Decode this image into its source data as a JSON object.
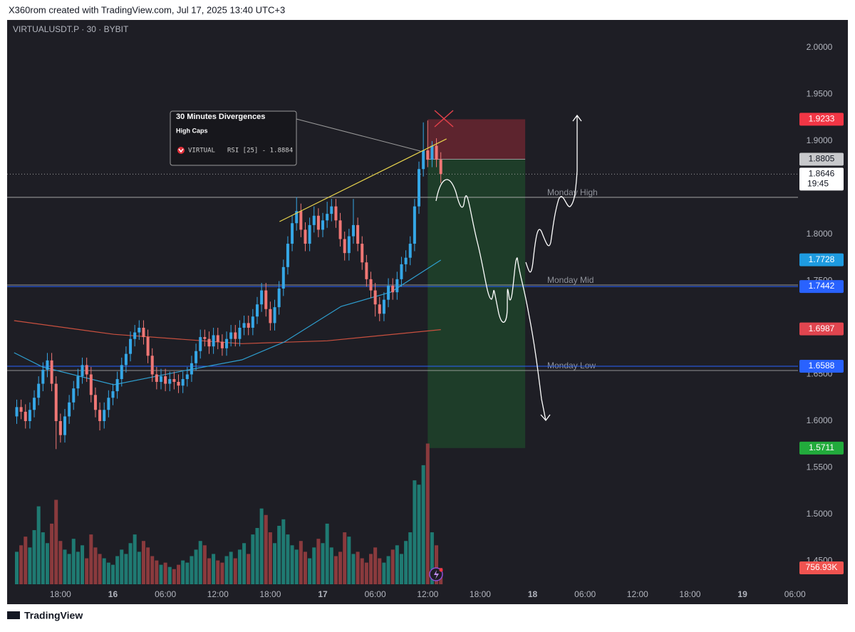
{
  "header": {
    "text": "X360rom created with TradingView.com, Jul 17, 2025 13:40 UTC+3"
  },
  "footer": {
    "brand": "TradingView"
  },
  "chart_data": {
    "type": "candlestick",
    "title": "VIRTUALUSDT.P · 30 · BYBIT",
    "up_color": "#35a7e6",
    "down_color": "#f07775",
    "volume_up_color": "#1f7a72",
    "volume_down_color": "#8a3a3d",
    "open": [
      1.605,
      1.615,
      1.61,
      1.6,
      1.612,
      1.625,
      1.64,
      1.655,
      1.665,
      1.64,
      1.6,
      1.585,
      1.605,
      1.62,
      1.635,
      1.648,
      1.66,
      1.65,
      1.628,
      1.612,
      1.6,
      1.612,
      1.625,
      1.632,
      1.645,
      1.66,
      1.672,
      1.688,
      1.695,
      1.7,
      1.69,
      1.67,
      1.65,
      1.642,
      1.648,
      1.64,
      1.645,
      1.642,
      1.638,
      1.645,
      1.65,
      1.662,
      1.675,
      1.69,
      1.688,
      1.68,
      1.692,
      1.685,
      1.678,
      1.688,
      1.695,
      1.688,
      1.7,
      1.705,
      1.7,
      1.712,
      1.725,
      1.74,
      1.72,
      1.705,
      1.722,
      1.742,
      1.765,
      1.79,
      1.812,
      1.825,
      1.805,
      1.79,
      1.81,
      1.82,
      1.805,
      1.815,
      1.822,
      1.83,
      1.815,
      1.795,
      1.78,
      1.798,
      1.81,
      1.79,
      1.77,
      1.752,
      1.74,
      1.725,
      1.715,
      1.73,
      1.745,
      1.738,
      1.752,
      1.768,
      1.775,
      1.79,
      1.83,
      1.87,
      1.89,
      1.88,
      1.895,
      1.88
    ],
    "high": [
      1.623,
      1.623,
      1.618,
      1.62,
      1.633,
      1.648,
      1.663,
      1.673,
      1.673,
      1.648,
      1.608,
      1.613,
      1.628,
      1.643,
      1.656,
      1.668,
      1.668,
      1.658,
      1.636,
      1.62,
      1.62,
      1.633,
      1.64,
      1.653,
      1.668,
      1.68,
      1.696,
      1.703,
      1.708,
      1.708,
      1.698,
      1.678,
      1.658,
      1.656,
      1.656,
      1.653,
      1.653,
      1.65,
      1.653,
      1.658,
      1.67,
      1.683,
      1.698,
      1.698,
      1.696,
      1.7,
      1.7,
      1.693,
      1.696,
      1.703,
      1.703,
      1.708,
      1.713,
      1.713,
      1.72,
      1.733,
      1.748,
      1.748,
      1.728,
      1.73,
      1.75,
      1.773,
      1.798,
      1.82,
      1.84,
      1.833,
      1.813,
      1.818,
      1.83,
      1.828,
      1.823,
      1.835,
      1.838,
      1.838,
      1.823,
      1.803,
      1.806,
      1.838,
      1.818,
      1.798,
      1.778,
      1.76,
      1.748,
      1.733,
      1.738,
      1.753,
      1.753,
      1.76,
      1.776,
      1.783,
      1.798,
      1.838,
      1.878,
      1.92,
      1.922,
      1.9,
      1.903,
      1.888
    ],
    "low": [
      1.597,
      1.602,
      1.592,
      1.592,
      1.604,
      1.617,
      1.632,
      1.647,
      1.632,
      1.57,
      1.577,
      1.577,
      1.597,
      1.612,
      1.627,
      1.64,
      1.642,
      1.62,
      1.604,
      1.59,
      1.592,
      1.604,
      1.617,
      1.624,
      1.637,
      1.652,
      1.664,
      1.68,
      1.687,
      1.682,
      1.662,
      1.642,
      1.634,
      1.634,
      1.632,
      1.632,
      1.634,
      1.63,
      1.63,
      1.637,
      1.642,
      1.654,
      1.667,
      1.68,
      1.672,
      1.672,
      1.677,
      1.67,
      1.67,
      1.68,
      1.68,
      1.68,
      1.692,
      1.692,
      1.692,
      1.704,
      1.717,
      1.712,
      1.697,
      1.697,
      1.714,
      1.734,
      1.757,
      1.782,
      1.804,
      1.797,
      1.782,
      1.782,
      1.802,
      1.797,
      1.797,
      1.807,
      1.814,
      1.807,
      1.787,
      1.772,
      1.772,
      1.79,
      1.782,
      1.762,
      1.744,
      1.732,
      1.712,
      1.707,
      1.707,
      1.722,
      1.73,
      1.73,
      1.744,
      1.76,
      1.767,
      1.782,
      1.822,
      1.862,
      1.872,
      1.872,
      1.872,
      1.855
    ],
    "close": [
      1.615,
      1.61,
      1.6,
      1.612,
      1.625,
      1.64,
      1.655,
      1.665,
      1.64,
      1.6,
      1.585,
      1.605,
      1.62,
      1.635,
      1.648,
      1.66,
      1.65,
      1.628,
      1.612,
      1.6,
      1.612,
      1.625,
      1.632,
      1.645,
      1.66,
      1.672,
      1.688,
      1.695,
      1.7,
      1.69,
      1.67,
      1.65,
      1.642,
      1.648,
      1.64,
      1.645,
      1.642,
      1.638,
      1.645,
      1.65,
      1.662,
      1.675,
      1.69,
      1.688,
      1.68,
      1.692,
      1.685,
      1.678,
      1.688,
      1.695,
      1.688,
      1.7,
      1.705,
      1.7,
      1.712,
      1.725,
      1.74,
      1.72,
      1.705,
      1.722,
      1.742,
      1.765,
      1.79,
      1.812,
      1.825,
      1.805,
      1.79,
      1.81,
      1.82,
      1.805,
      1.815,
      1.822,
      1.83,
      1.815,
      1.795,
      1.78,
      1.798,
      1.81,
      1.79,
      1.77,
      1.752,
      1.74,
      1.725,
      1.715,
      1.73,
      1.745,
      1.738,
      1.752,
      1.768,
      1.775,
      1.79,
      1.83,
      1.87,
      1.89,
      1.88,
      1.895,
      1.88,
      1.8646
    ],
    "volume": [
      1500,
      1800,
      2200,
      1700,
      2500,
      3600,
      2400,
      1900,
      2800,
      3900,
      2000,
      1600,
      1400,
      2100,
      1500,
      1800,
      1200,
      2300,
      1700,
      1400,
      1200,
      1000,
      900,
      1300,
      1600,
      1400,
      1900,
      2300,
      1500,
      2000,
      1700,
      1300,
      1100,
      900,
      1000,
      800,
      700,
      900,
      1100,
      1000,
      1300,
      1600,
      2000,
      1800,
      1200,
      1400,
      1100,
      1000,
      1300,
      1500,
      1200,
      1600,
      1900,
      1400,
      2300,
      2600,
      3500,
      3200,
      2400,
      1900,
      2700,
      3000,
      2300,
      1800,
      1600,
      2000,
      1500,
      1200,
      1700,
      2100,
      1900,
      2800,
      1700,
      1300,
      1500,
      2400,
      2200,
      1400,
      1500,
      1200,
      1000,
      1400,
      1700,
      1200,
      1000,
      1300,
      1600,
      1800,
      1400,
      2000,
      2400,
      4800,
      4600,
      5500,
      6500,
      2400,
      1800,
      756.93
    ],
    "ylim": [
      1.4252,
      2.0282
    ],
    "yticks": [
      {
        "value": 1.45,
        "label": "1.4500"
      },
      {
        "value": 1.5,
        "label": "1.5000"
      },
      {
        "value": 1.55,
        "label": "1.5500"
      },
      {
        "value": 1.6,
        "label": "1.6000"
      },
      {
        "value": 1.65,
        "label": "1.6500"
      },
      {
        "value": 1.7,
        "label": "1.7000"
      },
      {
        "value": 1.75,
        "label": "1.7500"
      },
      {
        "value": 1.8,
        "label": "1.8000"
      },
      {
        "value": 1.85,
        "label": "1.8500"
      },
      {
        "value": 1.9,
        "label": "1.9000"
      },
      {
        "value": 1.95,
        "label": "1.9500"
      },
      {
        "value": 2.0,
        "label": "2.0000"
      }
    ],
    "vlim": [
      0,
      26000
    ],
    "xlim": [
      -2.2,
      178.7
    ],
    "xticks": [
      {
        "value": 10,
        "label": "18:00"
      },
      {
        "value": 22,
        "label": "16"
      },
      {
        "value": 34,
        "label": "06:00"
      },
      {
        "value": 46,
        "label": "12:00"
      },
      {
        "value": 58,
        "label": "18:00"
      },
      {
        "value": 70,
        "label": "17"
      },
      {
        "value": 82,
        "label": "06:00"
      },
      {
        "value": 94,
        "label": "12:00"
      },
      {
        "value": 106,
        "label": "18:00"
      },
      {
        "value": 118,
        "label": "18"
      },
      {
        "value": 130,
        "label": "06:00"
      },
      {
        "value": 142,
        "label": "12:00"
      },
      {
        "value": 154,
        "label": "18:00"
      },
      {
        "value": 166,
        "label": "19"
      },
      {
        "value": 178,
        "label": "06:00"
      }
    ],
    "grid": false,
    "ma": [
      {
        "color": "#c9503f",
        "x": [
          -0.6,
          22.2,
          51.5,
          71,
          97
        ],
        "values": [
          1.7076,
          1.693,
          1.683,
          1.686,
          1.698
        ]
      },
      {
        "color": "#2e9fd0",
        "x": [
          -0.6,
          5.9,
          22.2,
          38.5,
          51.5,
          61.2,
          74.2,
          85.6,
          97
        ],
        "values": [
          1.6733,
          1.658,
          1.6389,
          1.6542,
          1.6656,
          1.6847,
          1.7229,
          1.7382,
          1.7725
        ]
      }
    ],
    "trendline": {
      "color": "#e8d44d",
      "x": [
        60.1,
        98.3
      ],
      "values": [
        1.8137,
        1.9023
      ]
    },
    "levels": [
      {
        "label": "Monday High",
        "value": 1.8397
      },
      {
        "label": "Monday Mid",
        "value": 1.7458
      },
      {
        "label": "Monday Low",
        "value": 1.6542
      }
    ],
    "position": {
      "x": [
        94,
        116.3
      ],
      "stop": 1.9233,
      "entry": 1.8805,
      "target": 1.5711
    },
    "price_tags": [
      {
        "value": 1.9233,
        "color": "#f23645",
        "text_color": "#ffffff"
      },
      {
        "value": 1.8805,
        "color": "#c8c9cc",
        "text_color": "#131722"
      },
      {
        "value": 1.8646,
        "countdown": "19:45",
        "color": "#ffffff",
        "text_color": "#131722",
        "line": "dotted"
      },
      {
        "value": 1.7728,
        "color": "#1e9be0",
        "text_color": "#ffffff"
      },
      {
        "value": 1.7442,
        "color": "#2962ff",
        "text_color": "#ffffff",
        "line": "solid"
      },
      {
        "value": 1.6987,
        "color": "#e0454f",
        "text_color": "#ffffff"
      },
      {
        "value": 1.6588,
        "color": "#2962ff",
        "text_color": "#ffffff",
        "line": "solid"
      },
      {
        "value": 1.5711,
        "color": "#22ab3c",
        "text_color": "#ffffff"
      },
      {
        "value": 756.93,
        "label": "756.93K",
        "axis": "volume",
        "color": "#f05350",
        "text_color": "#ffffff"
      }
    ]
  },
  "annotation": {
    "title": "30 Minutes Divergences",
    "subtitle": "High Caps",
    "symbol": "VIRTUAL",
    "indicator": "RSI [25] - 1.8884"
  }
}
